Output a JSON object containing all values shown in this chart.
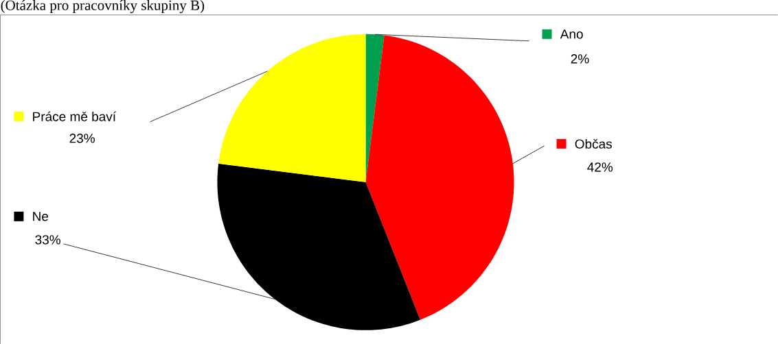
{
  "chart_data": {
    "type": "pie",
    "title": "(Otázka pro pracovníky skupiny B)",
    "categories": [
      "Ano",
      "Občas",
      "Ne",
      "Práce mě baví"
    ],
    "values": [
      2,
      42,
      33,
      23
    ],
    "value_labels": [
      "2%",
      "42%",
      "33%",
      "23%"
    ],
    "colors": [
      "#00a04e",
      "#ff0000",
      "#000000",
      "#ffff00"
    ],
    "legend": "top left"
  }
}
